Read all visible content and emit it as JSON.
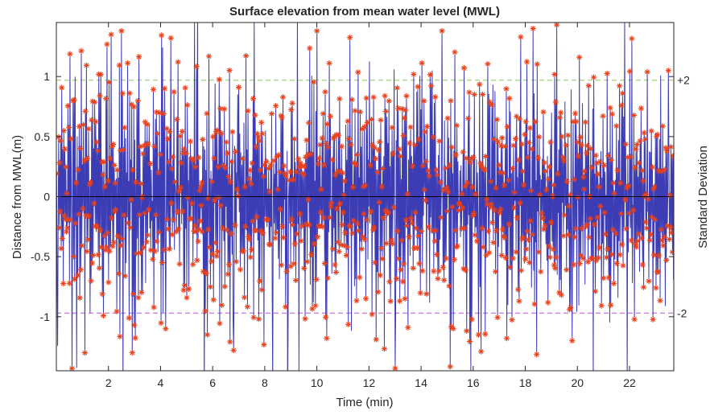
{
  "chart_data": {
    "type": "line",
    "title": "Surface elevation from mean water level (MWL)",
    "xlabel": "Time (min)",
    "ylabel": "Distance from MWL(m)",
    "y2label": "Standard Deviation",
    "xlim": [
      0,
      23.7
    ],
    "ylim": [
      -1.45,
      1.45
    ],
    "xticks": [
      2,
      4,
      6,
      8,
      10,
      12,
      14,
      16,
      18,
      20,
      22
    ],
    "yticks": [
      -1,
      -0.5,
      0,
      0.5,
      1
    ],
    "ytick_labels": [
      "-1",
      "-0.5",
      "0",
      "0.5",
      "1"
    ],
    "grid": false,
    "sample_count": 1200,
    "reference_lines": [
      {
        "label": "+2",
        "value": 0.97,
        "color": "#b5d98a",
        "style": "dashed"
      },
      {
        "label": "-2",
        "value": -0.97,
        "color": "#c98bd9",
        "style": "dashed"
      },
      {
        "label": "",
        "value": 0,
        "color": "#000000",
        "style": "solid"
      }
    ],
    "series": [
      {
        "type": "line",
        "color": "#3c3cb4"
      },
      {
        "type": "scatter",
        "marker": "asterisk",
        "color": "#e8401c"
      }
    ],
    "notable_points": [
      {
        "x": 0.05,
        "y": -1.24
      },
      {
        "x": 0.6,
        "y": -1.43
      },
      {
        "x": 1.1,
        "y": -1.3
      },
      {
        "x": 2.1,
        "y": 1.35
      },
      {
        "x": 2.5,
        "y": 1.38
      },
      {
        "x": 3.0,
        "y": 1.38
      },
      {
        "x": 3.0,
        "y": -1.07
      },
      {
        "x": 4.2,
        "y": -1.1
      },
      {
        "x": 5.8,
        "y": -1.15
      },
      {
        "x": 6.8,
        "y": -1.28
      },
      {
        "x": 8.3,
        "y": -1.6
      },
      {
        "x": 8.9,
        "y": -1.03
      },
      {
        "x": 10.0,
        "y": 1.38
      },
      {
        "x": 13.0,
        "y": -1.43
      },
      {
        "x": 14.8,
        "y": 1.38
      },
      {
        "x": 16.2,
        "y": -1.15
      },
      {
        "x": 17.3,
        "y": -1.18
      },
      {
        "x": 18.3,
        "y": 1.4
      },
      {
        "x": 19.2,
        "y": 1.43
      },
      {
        "x": 19.8,
        "y": -1.2
      },
      {
        "x": 23.5,
        "y": 1.05
      }
    ]
  }
}
